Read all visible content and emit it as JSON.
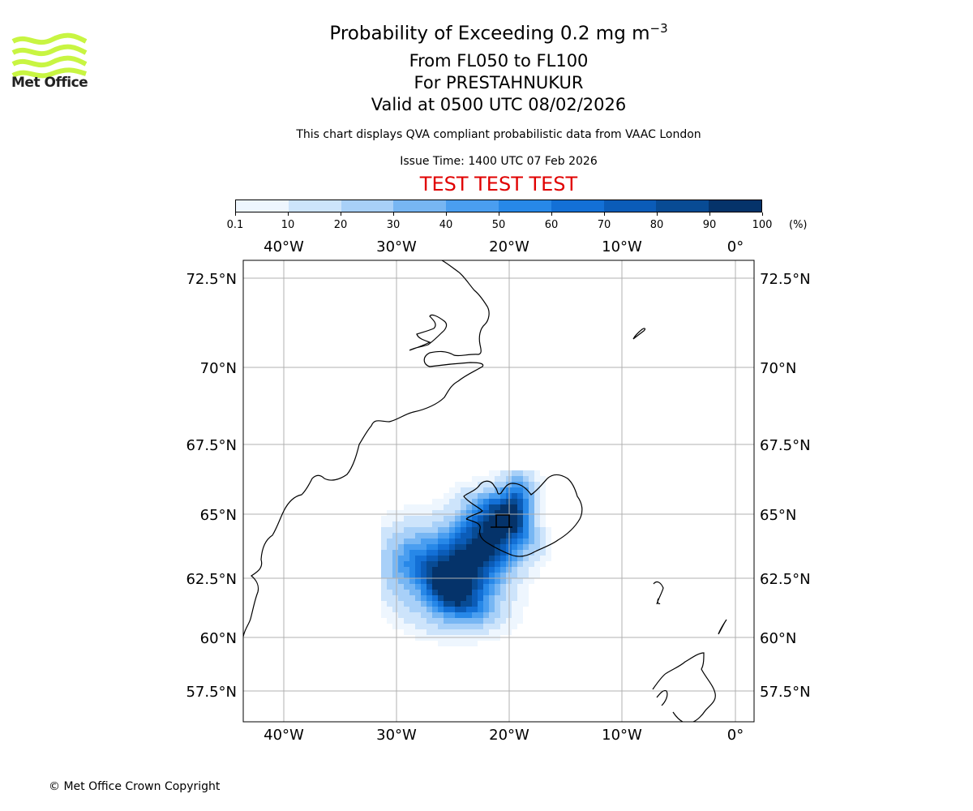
{
  "logo": {
    "name": "Met Office",
    "icon": "met-office-wave-logo-icon",
    "color": "#c8f542"
  },
  "title": {
    "main": "Probability of Exceeding 0.2 mg m",
    "unit_superscript": "−3",
    "flight_levels": "From FL050 to FL100",
    "volcano": "For PRESTAHNUKUR",
    "valid": "Valid at 0500 UTC 08/02/2026"
  },
  "subtitle": "This chart displays QVA compliant probabilistic data from VAAC London",
  "issue_time": "Issue Time: 1400 UTC 07 Feb 2026",
  "test_banner": "TEST TEST TEST",
  "colorbar": {
    "ticks": [
      "0.1",
      "10",
      "20",
      "30",
      "40",
      "50",
      "60",
      "70",
      "80",
      "90",
      "100"
    ],
    "unit": "(%)",
    "colors": [
      "#eef6fe",
      "#cde4fb",
      "#a8d0f8",
      "#77b6f3",
      "#4a9ef0",
      "#2788e8",
      "#1370d6",
      "#0b5cb8",
      "#084b94",
      "#05336a"
    ]
  },
  "map": {
    "lon_labels": [
      "40°W",
      "30°W",
      "20°W",
      "10°W",
      "0°"
    ],
    "lat_labels": [
      "72.5°N",
      "70°N",
      "67.5°N",
      "65°N",
      "62.5°N",
      "60°N",
      "57.5°N"
    ],
    "plume_levels": [
      {
        "level_pct": 5
      },
      {
        "level_pct": 15
      },
      {
        "level_pct": 35
      },
      {
        "level_pct": 55
      },
      {
        "level_pct": 75
      },
      {
        "level_pct": 95
      }
    ]
  },
  "copyright": "© Met Office Crown Copyright"
}
